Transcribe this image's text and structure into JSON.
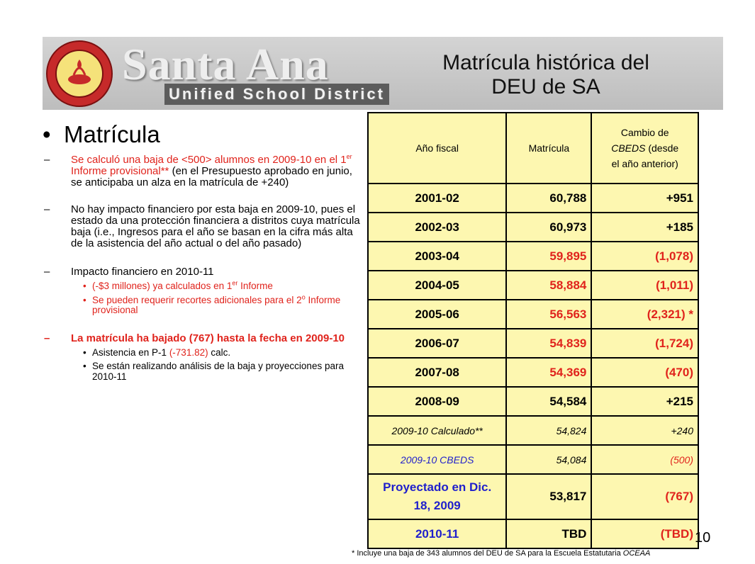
{
  "header": {
    "logo_word": "Santa Ana",
    "logo_sub": "Unified School District",
    "seal_text": "SANTA ANA UNIFIED SCHOOL DISTRICT",
    "title_line1": "Matrícula histórica del",
    "title_line2": "DEU de SA"
  },
  "left": {
    "heading": "Matrícula",
    "b1_red": "Se calculó una baja de <500> alumnos en 2009-10 en el 1",
    "b1_sup": "er",
    "b1_red2": " Informe provisional**",
    "b1_black": "(en el Presupuesto aprobado en junio, se anticipaba un alza en la matrícula de +240)",
    "b2": "No hay impacto financiero por esta baja en 2009-10, pues el estado da una protección financiera a distritos cuya matrícula baja (i.e., Ingresos para el año se basan en la cifra más alta de la asistencia del año actual o del año pasado)",
    "b3": "Impacto financiero en 2010-11",
    "b3_s1": "(-$3 millones) ya calculados en 1",
    "b3_s1_sup": "er",
    "b3_s1_end": " Informe",
    "b3_s2": "Se pueden requerir recortes adicionales para el 2",
    "b3_s2_sup": "o",
    "b3_s2_end": " Informe provisional",
    "b4": "La matrícula ha bajado (767) hasta la fecha en 2009-10",
    "b4_s1_a": "Asistencia en P-1 ",
    "b4_s1_b": "(-731.82)",
    "b4_s1_c": " calc.",
    "b4_s2": "Se están realizando análisis de la baja y proyecciones para 2010-11"
  },
  "table": {
    "header": {
      "col1": "Año fiscal",
      "col2": "Matrícula",
      "col3_a": "Cambio de",
      "col3_b": "CBEDS",
      "col3_c": " (desde",
      "col3_d": "el año anterior)"
    },
    "rows": [
      {
        "year": "2001-02",
        "enroll": "60,788",
        "change": "+951"
      },
      {
        "year": "2002-03",
        "enroll": "60,973",
        "change": "+185"
      },
      {
        "year": "2003-04",
        "enroll": "59,895",
        "change": "(1,078)"
      },
      {
        "year": "2004-05",
        "enroll": "58,884",
        "change": "(1,011)"
      },
      {
        "year": "2005-06",
        "enroll": "56,563",
        "change": "(2,321) *"
      },
      {
        "year": "2006-07",
        "enroll": "54,839",
        "change": "(1,724)"
      },
      {
        "year": "2007-08",
        "enroll": "54,369",
        "change": "(470)"
      },
      {
        "year": "2008-09",
        "enroll": "54,584",
        "change": "+215"
      },
      {
        "year": "2009-10 Calculado**",
        "enroll": "54,824",
        "change": "+240"
      },
      {
        "year": "2009-10 CBEDS",
        "enroll": "54,084",
        "change": "(500)"
      },
      {
        "year": "Proyectado en Dic. 18, 2009",
        "enroll": "53,817",
        "change": "(767)"
      },
      {
        "year": "2010-11",
        "enroll": "TBD",
        "change": "(TBD)"
      }
    ]
  },
  "page_number": "10",
  "footnote_a": "* Incluye una baja de 343 alumnos del DEU de SA para la Escuela Estatutaria ",
  "footnote_b": "OCEAA"
}
